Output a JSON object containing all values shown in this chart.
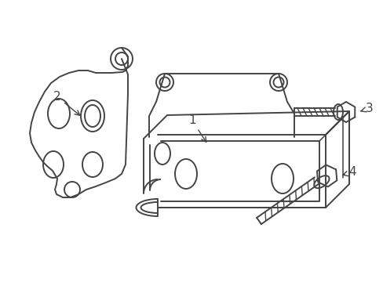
{
  "background_color": "#ffffff",
  "line_color": "#444444",
  "line_width": 1.4,
  "figsize": [
    4.89,
    3.6
  ],
  "dpi": 100
}
